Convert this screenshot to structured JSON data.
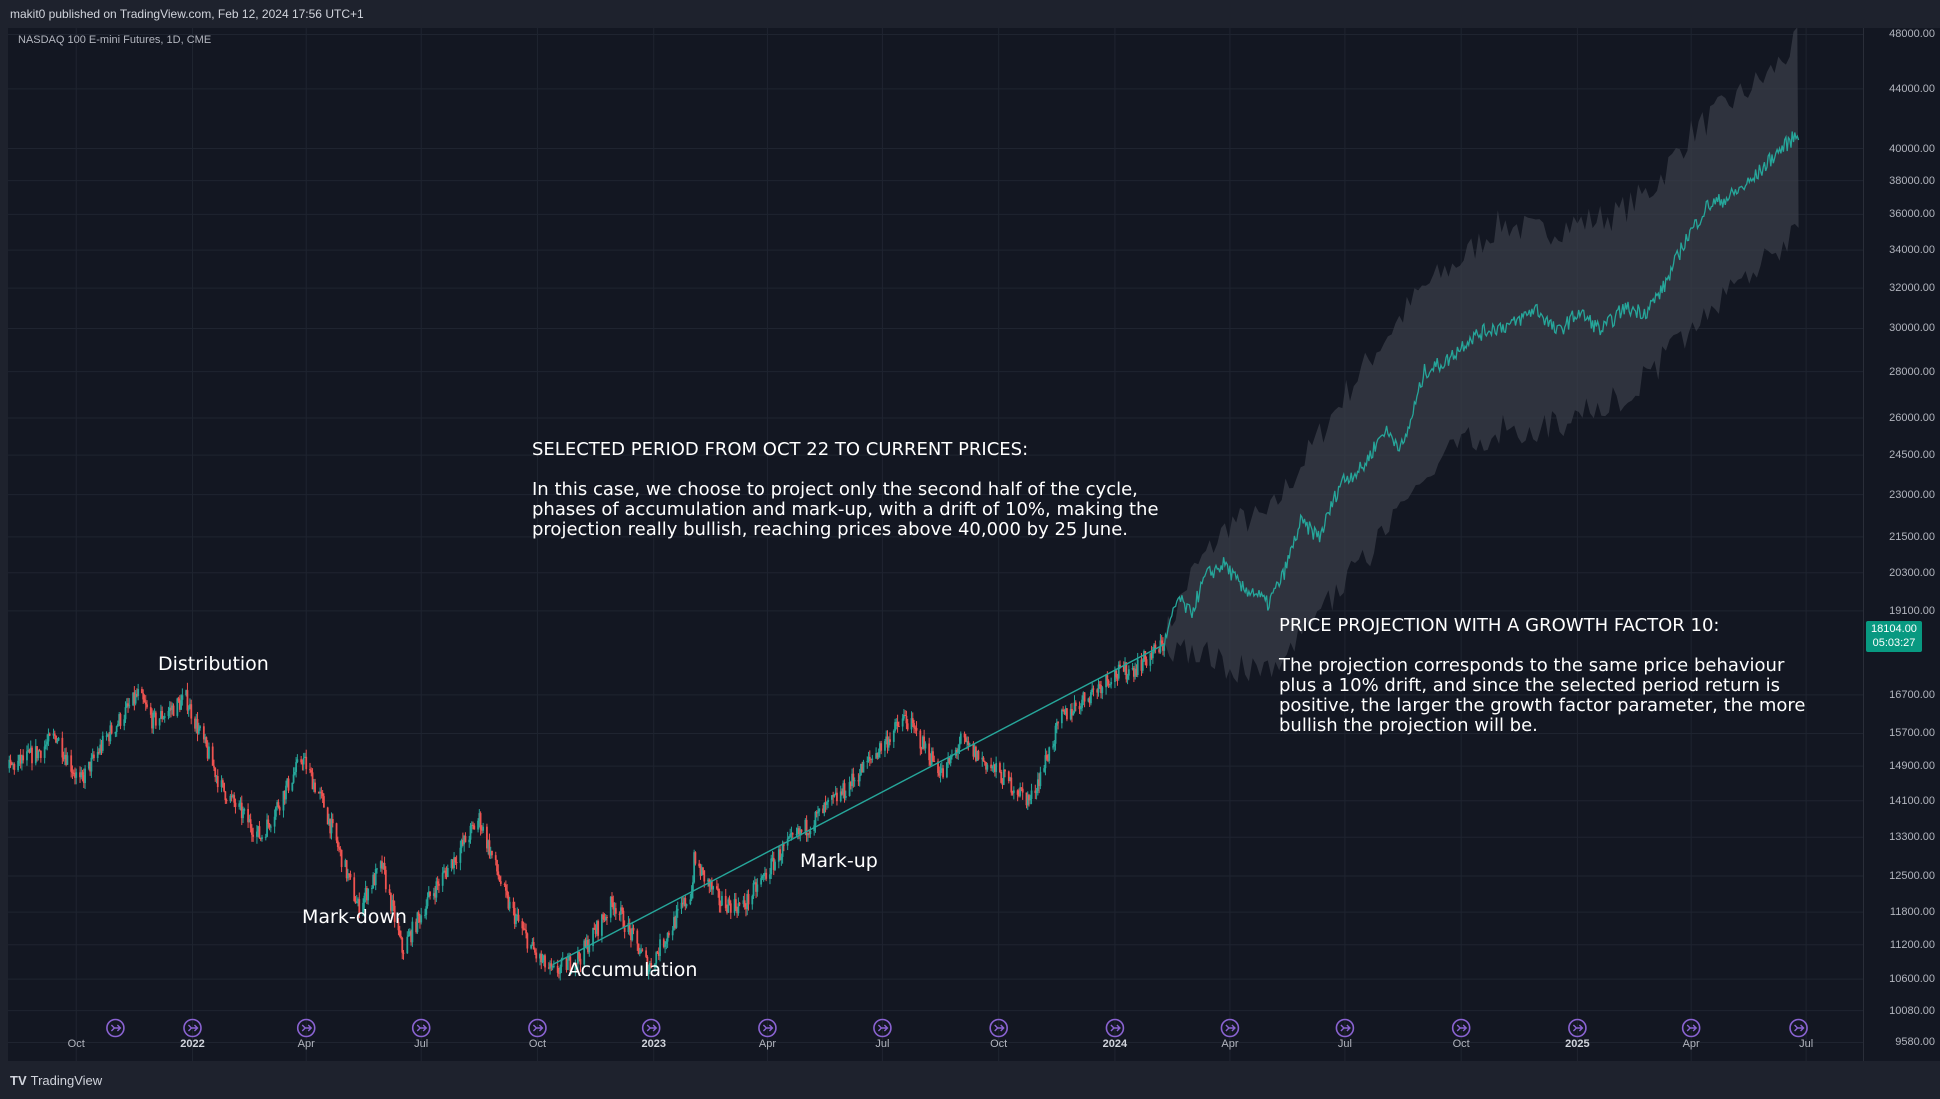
{
  "header": {
    "published": "makit0 published on TradingView.com, Feb 12, 2024 17:56 UTC+1",
    "symbol": "NASDAQ 100 E-mini Futures, 1D, CME"
  },
  "footer": {
    "logo_mark": "TV",
    "logo_text": "TradingView"
  },
  "price_label": {
    "price": "18104.00",
    "countdown": "05:03:27"
  },
  "annotations": {
    "selected_period": "SELECTED PERIOD FROM OCT 22 TO CURRENT PRICES:\n\nIn this case, we choose to project only the second half of the cycle,\nphases of accumulation and mark-up, with a drift of 10%, making the\nprojection really bullish, reaching prices above 40,000 by 25 June.",
    "projection": "PRICE PROJECTION WITH A GROWTH FACTOR 10:\n\nThe projection corresponds to the same price behaviour\nplus a 10% drift, and since the selected period return is\npositive, the larger the growth factor parameter, the more\nbullish the projection will be.",
    "phases": [
      "Distribution",
      "Mark-down",
      "Accumulation",
      "Mark-up"
    ]
  },
  "colors": {
    "background": "#131722",
    "frame": "#1e222d",
    "grid": "#1f2430",
    "up": "#26a69a",
    "down": "#ef5350",
    "projection_line": "#26a69a",
    "projection_band": "#3a3d48",
    "trendline": "#26a69a",
    "event_icon": "#8a63d2"
  },
  "chart_data": {
    "type": "candlestick",
    "scale": "log",
    "ylim": [
      9300,
      48500
    ],
    "xlim": [
      "2021-08-08",
      "2025-08-15"
    ],
    "y_ticks": [
      48000,
      44000,
      40000,
      38000,
      36000,
      34000,
      32000,
      30000,
      28000,
      26000,
      24500,
      23000,
      21500,
      20300,
      19100,
      16700,
      15700,
      14900,
      14100,
      13300,
      12500,
      11800,
      11200,
      10600,
      10080,
      9580
    ],
    "y_tick_labels": [
      "48000.00",
      "44000.00",
      "40000.00",
      "38000.00",
      "36000.00",
      "34000.00",
      "32000.00",
      "30000.00",
      "28000.00",
      "26000.00",
      "24500.00",
      "23000.00",
      "21500.00",
      "20300.00",
      "19100.00",
      "16700.00",
      "15700.00",
      "14900.00",
      "14100.00",
      "13300.00",
      "12500.00",
      "11800.00",
      "11200.00",
      "10600.00",
      "10080.00",
      "9580.00"
    ],
    "x_ticks": [
      {
        "date": "2021-10-01",
        "label": "Oct",
        "major": false
      },
      {
        "date": "2022-01-01",
        "label": "2022",
        "major": true
      },
      {
        "date": "2022-04-01",
        "label": "Apr",
        "major": false
      },
      {
        "date": "2022-07-01",
        "label": "Jul",
        "major": false
      },
      {
        "date": "2022-10-01",
        "label": "Oct",
        "major": false
      },
      {
        "date": "2023-01-01",
        "label": "2023",
        "major": true
      },
      {
        "date": "2023-04-01",
        "label": "Apr",
        "major": false
      },
      {
        "date": "2023-07-01",
        "label": "Jul",
        "major": false
      },
      {
        "date": "2023-10-01",
        "label": "Oct",
        "major": false
      },
      {
        "date": "2024-01-01",
        "label": "2024",
        "major": true
      },
      {
        "date": "2024-04-01",
        "label": "Apr",
        "major": false
      },
      {
        "date": "2024-07-01",
        "label": "Jul",
        "major": false
      },
      {
        "date": "2024-10-01",
        "label": "Oct",
        "major": false
      },
      {
        "date": "2025-01-01",
        "label": "2025",
        "major": true
      },
      {
        "date": "2025-04-01",
        "label": "Apr",
        "major": false
      },
      {
        "date": "2025-07-01",
        "label": "Jul",
        "major": false
      }
    ],
    "price_path": [
      [
        "2021-08-09",
        14850
      ],
      [
        "2021-09-01",
        15250
      ],
      [
        "2021-09-15",
        15650
      ],
      [
        "2021-10-04",
        14500
      ],
      [
        "2021-10-25",
        15600
      ],
      [
        "2021-11-19",
        16700
      ],
      [
        "2021-12-01",
        16000
      ],
      [
        "2021-12-27",
        16600
      ],
      [
        "2022-01-24",
        14400
      ],
      [
        "2022-02-24",
        13300
      ],
      [
        "2022-03-29",
        15100
      ],
      [
        "2022-04-15",
        14000
      ],
      [
        "2022-05-12",
        11900
      ],
      [
        "2022-05-31",
        12700
      ],
      [
        "2022-06-16",
        11100
      ],
      [
        "2022-07-08",
        12100
      ],
      [
        "2022-08-16",
        13700
      ],
      [
        "2022-09-07",
        12000
      ],
      [
        "2022-09-30",
        11000
      ],
      [
        "2022-10-13",
        10700
      ],
      [
        "2022-11-04",
        11000
      ],
      [
        "2022-11-30",
        12000
      ],
      [
        "2022-12-28",
        10800
      ],
      [
        "2023-01-31",
        12200
      ],
      [
        "2023-02-02",
        12800
      ],
      [
        "2023-02-22",
        12000
      ],
      [
        "2023-03-13",
        11900
      ],
      [
        "2023-04-12",
        13000
      ],
      [
        "2023-05-31",
        14300
      ],
      [
        "2023-07-19",
        16100
      ],
      [
        "2023-08-18",
        14700
      ],
      [
        "2023-09-01",
        15500
      ],
      [
        "2023-10-26",
        14100
      ],
      [
        "2023-11-20",
        16100
      ],
      [
        "2023-12-28",
        17200
      ],
      [
        "2024-01-15",
        17400
      ],
      [
        "2024-02-09",
        18100
      ]
    ],
    "projection": {
      "start": "2024-02-09",
      "end": "2025-06-25",
      "start_price": 18104,
      "path": [
        [
          "2024-02-09",
          18104
        ],
        [
          "2024-02-20",
          19500
        ],
        [
          "2024-03-01",
          19000
        ],
        [
          "2024-03-13",
          20200
        ],
        [
          "2024-03-28",
          20600
        ],
        [
          "2024-04-10",
          19800
        ],
        [
          "2024-04-20",
          19700
        ],
        [
          "2024-05-01",
          19300
        ],
        [
          "2024-05-13",
          20200
        ],
        [
          "2024-05-27",
          22000
        ],
        [
          "2024-06-11",
          21500
        ],
        [
          "2024-06-28",
          23500
        ],
        [
          "2024-07-15",
          24000
        ],
        [
          "2024-08-01",
          25500
        ],
        [
          "2024-08-16",
          24800
        ],
        [
          "2024-09-02",
          28000
        ],
        [
          "2024-09-20",
          28500
        ],
        [
          "2024-10-07",
          29500
        ],
        [
          "2024-10-25",
          30000
        ],
        [
          "2024-11-11",
          30200
        ],
        [
          "2024-11-29",
          31000
        ],
        [
          "2024-12-16",
          29800
        ],
        [
          "2025-01-02",
          30800
        ],
        [
          "2025-01-20",
          29900
        ],
        [
          "2025-02-07",
          31000
        ],
        [
          "2025-02-24",
          30800
        ],
        [
          "2025-03-10",
          32000
        ],
        [
          "2025-03-27",
          34500
        ],
        [
          "2025-04-14",
          36500
        ],
        [
          "2025-05-01",
          37000
        ],
        [
          "2025-05-19",
          38000
        ],
        [
          "2025-06-05",
          39500
        ],
        [
          "2025-06-25",
          41000
        ]
      ],
      "band_upper": [
        [
          "2024-02-09",
          18300
        ],
        [
          "2024-03-01",
          20200
        ],
        [
          "2024-04-01",
          22000
        ],
        [
          "2024-05-01",
          22200
        ],
        [
          "2024-06-01",
          24500
        ],
        [
          "2024-07-01",
          27000
        ],
        [
          "2024-08-01",
          29500
        ],
        [
          "2024-09-01",
          32000
        ],
        [
          "2024-10-01",
          33500
        ],
        [
          "2024-11-01",
          35500
        ],
        [
          "2024-12-01",
          35000
        ],
        [
          "2025-01-01",
          35500
        ],
        [
          "2025-02-01",
          36000
        ],
        [
          "2025-03-01",
          37500
        ],
        [
          "2025-04-01",
          41000
        ],
        [
          "2025-05-01",
          43000
        ],
        [
          "2025-06-01",
          45000
        ],
        [
          "2025-06-25",
          47500
        ]
      ],
      "band_lower": [
        [
          "2024-02-09",
          17900
        ],
        [
          "2024-03-01",
          18000
        ],
        [
          "2024-04-01",
          17500
        ],
        [
          "2024-05-01",
          17300
        ],
        [
          "2024-06-01",
          18500
        ],
        [
          "2024-07-01",
          20000
        ],
        [
          "2024-08-01",
          21500
        ],
        [
          "2024-09-01",
          23500
        ],
        [
          "2024-10-01",
          25000
        ],
        [
          "2024-11-01",
          25500
        ],
        [
          "2024-12-01",
          25500
        ],
        [
          "2025-01-01",
          26000
        ],
        [
          "2025-02-01",
          26800
        ],
        [
          "2025-03-01",
          28000
        ],
        [
          "2025-04-01",
          30000
        ],
        [
          "2025-05-01",
          32000
        ],
        [
          "2025-06-01",
          33500
        ],
        [
          "2025-06-25",
          35000
        ]
      ]
    },
    "trendline": [
      [
        "2022-10-13",
        10850
      ],
      [
        "2024-02-09",
        18104
      ]
    ],
    "event_dates": [
      "2021-11-01",
      "2022-01-01",
      "2022-04-01",
      "2022-07-01",
      "2022-10-01",
      "2022-12-30",
      "2023-04-01",
      "2023-07-01",
      "2023-10-01",
      "2024-01-01",
      "2024-04-01",
      "2024-07-01",
      "2024-10-01",
      "2025-01-01",
      "2025-04-01",
      "2025-06-25"
    ]
  }
}
